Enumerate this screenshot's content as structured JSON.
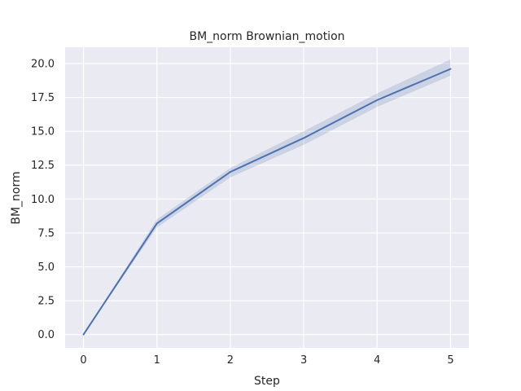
{
  "chart_data": {
    "type": "line",
    "title": "BM_norm Brownian_motion",
    "xlabel": "Step",
    "ylabel": "BM_norm",
    "x": [
      0,
      1,
      2,
      3,
      4,
      5
    ],
    "xlim": [
      -0.25,
      5.25
    ],
    "ylim": [
      -0.98,
      21.2
    ],
    "xticks": [
      0,
      1,
      2,
      3,
      4,
      5
    ],
    "yticks": [
      0.0,
      2.5,
      5.0,
      7.5,
      10.0,
      12.5,
      15.0,
      17.5,
      20.0
    ],
    "ytick_labels": [
      "0.0",
      "2.5",
      "5.0",
      "7.5",
      "10.0",
      "12.5",
      "15.0",
      "17.5",
      "20.0"
    ],
    "grid": true,
    "series": [
      {
        "values": [
          0.0,
          8.2,
          12.0,
          14.5,
          17.3,
          19.6
        ],
        "lower": [
          0.0,
          7.9,
          11.6,
          14.0,
          16.8,
          19.1
        ],
        "upper": [
          0.0,
          8.5,
          12.3,
          15.0,
          17.8,
          20.3
        ],
        "color": "#4c72b0"
      }
    ],
    "background": "#eaeaf2"
  }
}
